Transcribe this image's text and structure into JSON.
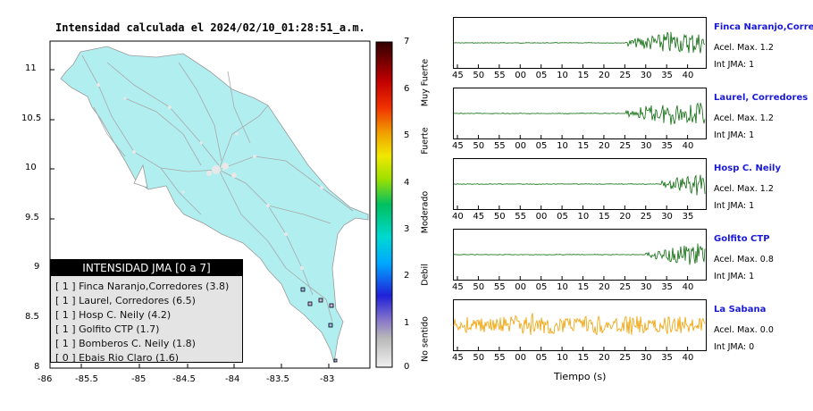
{
  "map": {
    "title": "Intensidad calculada el 2024/02/10_01:28:51_a.m.",
    "lat_ticks": [
      "11",
      "10.5",
      "10",
      "9.5",
      "9",
      "8.5",
      "8"
    ],
    "lon_ticks": [
      "-86",
      "-85.5",
      "-85",
      "-84.5",
      "-84",
      "-83.5",
      "-83"
    ],
    "legend": {
      "title": "INTENSIDAD JMA [0 a 7]",
      "rows": [
        "[ 1 ]  Finca Naranjo,Corredores (3.8)",
        "[ 1 ]  Laurel, Corredores (6.5)",
        "[ 1 ]  Hosp C. Neily (4.2)",
        "[ 1 ]  Golfito CTP (1.7)",
        "[ 1 ]  Bomberos C. Neily (1.8)",
        "[ 0 ]  Ebais Rio Claro (1.6)"
      ]
    }
  },
  "colorbar": {
    "ticks": [
      "7",
      "6",
      "5",
      "4",
      "3",
      "2",
      "1",
      "0"
    ],
    "labels": [
      "Muy Fuerte",
      "Fuerte",
      "Moderado",
      "Debil",
      "No sentido"
    ]
  },
  "seismograms": [
    {
      "name": "Finca Naranjo,Corredores",
      "acel": "Acel. Max. 1.2",
      "int": "Int JMA: 1",
      "color": "#0a6b0a",
      "ticks": [
        "45",
        "50",
        "55",
        "00",
        "05",
        "10",
        "15",
        "20",
        "25",
        "30",
        "35",
        "40"
      ],
      "onset": 0.68,
      "mode": "quake"
    },
    {
      "name": "Laurel, Corredores",
      "acel": "Acel. Max. 1.2",
      "int": "Int JMA: 1",
      "color": "#0a6b0a",
      "ticks": [
        "45",
        "50",
        "55",
        "00",
        "05",
        "10",
        "15",
        "20",
        "25",
        "30",
        "35",
        "40"
      ],
      "onset": 0.68,
      "mode": "quake"
    },
    {
      "name": "Hosp C. Neily",
      "acel": "Acel. Max. 1.2",
      "int": "Int JMA: 1",
      "color": "#0a6b0a",
      "ticks": [
        "40",
        "45",
        "50",
        "55",
        "00",
        "05",
        "10",
        "15",
        "20",
        "25",
        "30",
        "35"
      ],
      "onset": 0.81,
      "mode": "quake"
    },
    {
      "name": "Golfito CTP",
      "acel": "Acel. Max. 0.8",
      "int": "Int JMA: 1",
      "color": "#0a6b0a",
      "ticks": [
        "45",
        "50",
        "55",
        "00",
        "05",
        "10",
        "15",
        "20",
        "25",
        "30",
        "35",
        "40"
      ],
      "onset": 0.76,
      "mode": "quake"
    },
    {
      "name": "La Sabana",
      "acel": "Acel. Max. 0.0",
      "int": "Int JMA: 0",
      "color": "#f0a000",
      "ticks": [
        "45",
        "50",
        "55",
        "00",
        "05",
        "10",
        "15",
        "20",
        "25",
        "30",
        "35",
        "40"
      ],
      "onset": 0.0,
      "mode": "noise"
    }
  ],
  "xlabel": "Tiempo (s)"
}
